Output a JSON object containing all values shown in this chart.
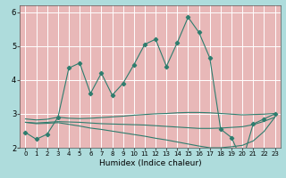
{
  "title": "",
  "xlabel": "Humidex (Indice chaleur)",
  "ylabel": "",
  "xlim": [
    -0.5,
    23.5
  ],
  "ylim": [
    2.0,
    6.2
  ],
  "yticks": [
    2,
    3,
    4,
    5,
    6
  ],
  "xticks": [
    0,
    1,
    2,
    3,
    4,
    5,
    6,
    7,
    8,
    9,
    10,
    11,
    12,
    13,
    14,
    15,
    16,
    17,
    18,
    19,
    20,
    21,
    22,
    23
  ],
  "bg_outer": "#aedcdc",
  "bg_inner": "#e8b8b8",
  "grid_color": "#ffffff",
  "line_color": "#2e7d6e",
  "lines": [
    {
      "x": [
        0,
        1,
        2,
        3,
        4,
        5,
        6,
        7,
        8,
        9,
        10,
        11,
        12,
        13,
        14,
        15,
        16,
        17,
        18,
        19,
        20,
        21,
        22,
        23
      ],
      "y": [
        2.45,
        2.25,
        2.4,
        2.9,
        4.35,
        4.5,
        3.6,
        4.2,
        3.55,
        3.9,
        4.45,
        5.05,
        5.2,
        4.4,
        5.1,
        5.85,
        5.4,
        4.65,
        2.55,
        2.3,
        1.6,
        2.7,
        2.85,
        3.0
      ],
      "has_markers": true
    },
    {
      "x": [
        0,
        1,
        2,
        3,
        4,
        5,
        6,
        7,
        8,
        9,
        10,
        11,
        12,
        13,
        14,
        15,
        16,
        17,
        18,
        19,
        20,
        21,
        22,
        23
      ],
      "y": [
        2.85,
        2.82,
        2.84,
        2.9,
        2.87,
        2.86,
        2.87,
        2.89,
        2.91,
        2.93,
        2.96,
        2.98,
        3.0,
        3.01,
        3.03,
        3.04,
        3.04,
        3.03,
        3.01,
        2.99,
        2.97,
        2.98,
        2.99,
        3.01
      ],
      "has_markers": false
    },
    {
      "x": [
        0,
        1,
        2,
        3,
        4,
        5,
        6,
        7,
        8,
        9,
        10,
        11,
        12,
        13,
        14,
        15,
        16,
        17,
        18,
        19,
        20,
        21,
        22,
        23
      ],
      "y": [
        2.75,
        2.73,
        2.75,
        2.77,
        2.76,
        2.75,
        2.73,
        2.71,
        2.7,
        2.69,
        2.68,
        2.67,
        2.65,
        2.63,
        2.61,
        2.59,
        2.57,
        2.57,
        2.58,
        2.6,
        2.62,
        2.68,
        2.78,
        2.9
      ],
      "has_markers": false
    },
    {
      "x": [
        0,
        1,
        2,
        3,
        4,
        5,
        6,
        7,
        8,
        9,
        10,
        11,
        12,
        13,
        14,
        15,
        16,
        17,
        18,
        19,
        20,
        21,
        22,
        23
      ],
      "y": [
        2.75,
        2.71,
        2.72,
        2.74,
        2.69,
        2.64,
        2.58,
        2.54,
        2.49,
        2.44,
        2.39,
        2.34,
        2.28,
        2.23,
        2.17,
        2.11,
        2.05,
        2.0,
        2.0,
        2.03,
        2.07,
        2.2,
        2.48,
        2.9
      ],
      "has_markers": false
    }
  ]
}
